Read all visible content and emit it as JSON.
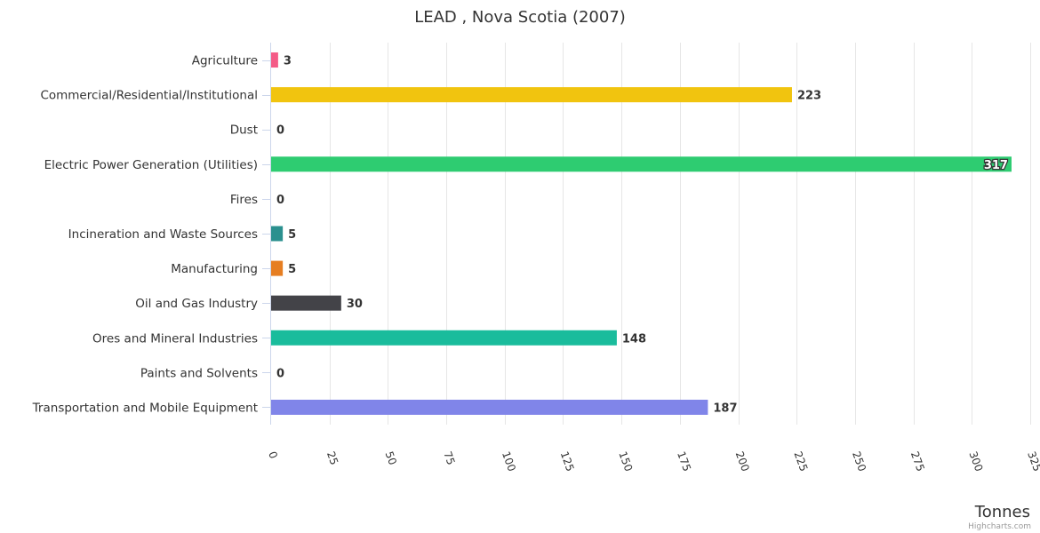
{
  "chart_data": {
    "type": "bar",
    "orientation": "horizontal",
    "title": "LEAD , Nova Scotia (2007)",
    "xlabel": "",
    "ylabel": "Tonnes",
    "xlim": [
      0,
      325
    ],
    "ticks": [
      0,
      25,
      50,
      75,
      100,
      125,
      150,
      175,
      200,
      225,
      250,
      275,
      300,
      325
    ],
    "tick_labels": [
      "0",
      "25",
      "50",
      "75",
      "100",
      "125",
      "150",
      "175",
      "200",
      "225",
      "250",
      "275",
      "300",
      "325"
    ],
    "grid": true,
    "categories": [
      "Agriculture",
      "Commercial/Residential/Institutional",
      "Dust",
      "Electric Power Generation (Utilities)",
      "Fires",
      "Incineration and Waste Sources",
      "Manufacturing",
      "Oil and Gas Industry",
      "Ores and Mineral Industries",
      "Paints and Solvents",
      "Transportation and Mobile Equipment"
    ],
    "values": [
      3,
      223,
      0,
      317,
      0,
      5,
      5,
      30,
      148,
      0,
      187
    ],
    "data_labels": [
      "3",
      "223",
      "0",
      "317",
      "0",
      "5",
      "5",
      "30",
      "148",
      "0",
      "187"
    ],
    "colors": [
      "#f45b87",
      "#f1c40f",
      "#2b908f",
      "#2ecc71",
      "#e4d354",
      "#2b908f",
      "#e67e22",
      "#434348",
      "#1abc9c",
      "#f15c80",
      "#8085e9"
    ],
    "credits": "Highcharts.com"
  }
}
